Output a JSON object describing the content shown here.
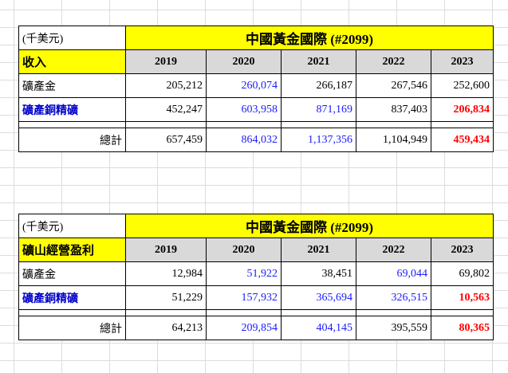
{
  "tables": [
    {
      "unit": "(千美元)",
      "title": "中國黃金國際 (#2099)",
      "section": "收入",
      "years": [
        "2019",
        "2020",
        "2021",
        "2022",
        "2023"
      ],
      "rows": [
        {
          "label": "礦產金",
          "values": [
            "205,212",
            "260,074",
            "266,187",
            "267,546",
            "252,600"
          ]
        },
        {
          "label": "礦產銅精礦",
          "values": [
            "452,247",
            "603,958",
            "871,169",
            "837,403",
            "206,834"
          ]
        }
      ],
      "total": {
        "label": "總計",
        "values": [
          "657,459",
          "864,032",
          "1,137,356",
          "1,104,949",
          "459,434"
        ]
      }
    },
    {
      "unit": "(千美元)",
      "title": "中國黃金國際 (#2099)",
      "section": "礦山經營盈利",
      "years": [
        "2019",
        "2020",
        "2021",
        "2022",
        "2023"
      ],
      "rows": [
        {
          "label": "礦產金",
          "values": [
            "12,984",
            "51,922",
            "38,451",
            "69,044",
            "69,802"
          ]
        },
        {
          "label": "礦產銅精礦",
          "values": [
            "51,229",
            "157,932",
            "365,694",
            "326,515",
            "10,563"
          ]
        }
      ],
      "total": {
        "label": "總計",
        "values": [
          "64,213",
          "209,854",
          "404,145",
          "395,559",
          "80,365"
        ]
      }
    }
  ],
  "colors": {
    "title_bg": "#ffff00",
    "header_bg": "#d9d9d9",
    "blue": "#1a1aff",
    "red": "#ff0000"
  }
}
